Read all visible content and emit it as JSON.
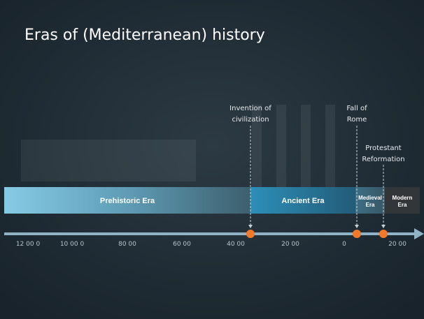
{
  "title": "Eras of (Mediterranean) history",
  "eras": [
    {
      "lines": [
        "Prehistoric Era"
      ]
    },
    {
      "lines": [
        "Ancient Era"
      ]
    },
    {
      "lines": [
        "Medieval",
        "Era"
      ]
    },
    {
      "lines": [
        "Modern",
        "Era"
      ]
    }
  ],
  "axis": {
    "ticks": [
      "12 00 0",
      "10 00 0",
      "80 00",
      "60 00",
      "40 00",
      "20 00",
      "0",
      "20 00"
    ]
  },
  "events": [
    {
      "lines": [
        "Invention of",
        "civilization"
      ]
    },
    {
      "lines": [
        "Fall of",
        "Rome"
      ]
    },
    {
      "lines": [
        "Protestant",
        "Reformation"
      ]
    }
  ]
}
